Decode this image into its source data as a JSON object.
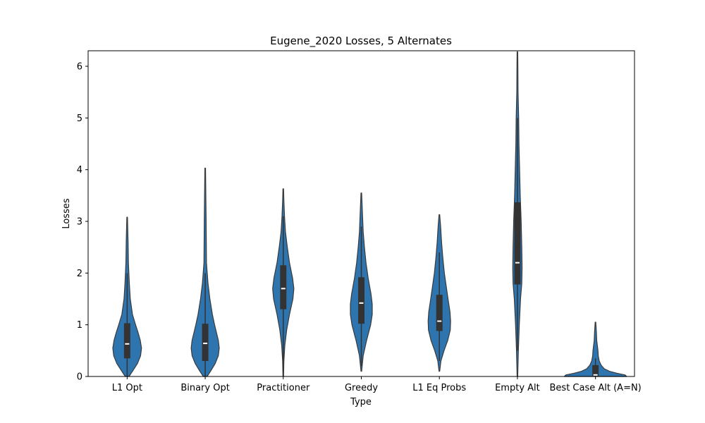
{
  "chart_data": {
    "type": "violin",
    "title": "Eugene_2020 Losses, 5 Alternates",
    "xlabel": "Type",
    "ylabel": "Losses",
    "ylim": [
      0,
      6.3
    ],
    "yticks": [
      0,
      1,
      2,
      3,
      4,
      5,
      6
    ],
    "grid": false,
    "legend": "none",
    "violin_color": "#2e75b0",
    "box_color": "#333333",
    "median_color": "#ffffff",
    "categories": [
      "L1 Opt",
      "Binary Opt",
      "Practitioner",
      "Greedy",
      "L1 Eq Probs",
      "Empty Alt",
      "Best Case Alt (A=N)"
    ],
    "violins": [
      {
        "category": "L1 Opt",
        "min": 0,
        "q1": 0.35,
        "median": 0.63,
        "q3": 1.03,
        "max": 3.08,
        "whisker_low": 0,
        "whisker_high": 2.0,
        "profile": [
          [
            0,
            0.06
          ],
          [
            0.1,
            0.17
          ],
          [
            0.25,
            0.33
          ],
          [
            0.4,
            0.43
          ],
          [
            0.55,
            0.46
          ],
          [
            0.7,
            0.42
          ],
          [
            0.85,
            0.35
          ],
          [
            1.0,
            0.27
          ],
          [
            1.2,
            0.17
          ],
          [
            1.5,
            0.1
          ],
          [
            1.8,
            0.07
          ],
          [
            2.2,
            0.04
          ],
          [
            2.6,
            0.03
          ],
          [
            3.08,
            0.01
          ]
        ]
      },
      {
        "category": "Binary Opt",
        "min": 0,
        "q1": 0.3,
        "median": 0.64,
        "q3": 1.02,
        "max": 4.03,
        "whisker_low": 0,
        "whisker_high": 2.0,
        "profile": [
          [
            0,
            0.06
          ],
          [
            0.1,
            0.17
          ],
          [
            0.25,
            0.32
          ],
          [
            0.4,
            0.42
          ],
          [
            0.55,
            0.45
          ],
          [
            0.7,
            0.42
          ],
          [
            0.85,
            0.36
          ],
          [
            1.0,
            0.3
          ],
          [
            1.2,
            0.23
          ],
          [
            1.5,
            0.15
          ],
          [
            1.8,
            0.09
          ],
          [
            2.2,
            0.04
          ],
          [
            3.0,
            0.03
          ],
          [
            4.03,
            0.01
          ]
        ]
      },
      {
        "category": "Practitioner",
        "min": 0,
        "q1": 1.3,
        "median": 1.7,
        "q3": 2.15,
        "max": 3.63,
        "whisker_low": 0.1,
        "whisker_high": 3.1,
        "profile": [
          [
            0,
            0.01
          ],
          [
            0.3,
            0.02
          ],
          [
            0.6,
            0.05
          ],
          [
            0.9,
            0.11
          ],
          [
            1.2,
            0.2
          ],
          [
            1.5,
            0.31
          ],
          [
            1.7,
            0.34
          ],
          [
            1.9,
            0.3
          ],
          [
            2.2,
            0.2
          ],
          [
            2.5,
            0.13
          ],
          [
            2.8,
            0.07
          ],
          [
            3.1,
            0.04
          ],
          [
            3.4,
            0.02
          ],
          [
            3.63,
            0.01
          ]
        ]
      },
      {
        "category": "Greedy",
        "min": 0.1,
        "q1": 1.02,
        "median": 1.42,
        "q3": 1.92,
        "max": 3.55,
        "whisker_low": 0.2,
        "whisker_high": 2.9,
        "profile": [
          [
            0.1,
            0.01
          ],
          [
            0.4,
            0.06
          ],
          [
            0.7,
            0.17
          ],
          [
            1.0,
            0.3
          ],
          [
            1.2,
            0.35
          ],
          [
            1.4,
            0.35
          ],
          [
            1.6,
            0.31
          ],
          [
            1.9,
            0.22
          ],
          [
            2.2,
            0.15
          ],
          [
            2.5,
            0.1
          ],
          [
            2.8,
            0.06
          ],
          [
            3.1,
            0.04
          ],
          [
            3.4,
            0.02
          ],
          [
            3.55,
            0.01
          ]
        ]
      },
      {
        "category": "L1 Eq Probs",
        "min": 0.1,
        "q1": 0.88,
        "median": 1.07,
        "q3": 1.58,
        "max": 3.13,
        "whisker_low": 0.3,
        "whisker_high": 2.4,
        "profile": [
          [
            0.1,
            0.01
          ],
          [
            0.3,
            0.05
          ],
          [
            0.5,
            0.15
          ],
          [
            0.7,
            0.27
          ],
          [
            0.9,
            0.35
          ],
          [
            1.07,
            0.36
          ],
          [
            1.25,
            0.34
          ],
          [
            1.45,
            0.29
          ],
          [
            1.7,
            0.23
          ],
          [
            2.0,
            0.16
          ],
          [
            2.3,
            0.11
          ],
          [
            2.6,
            0.07
          ],
          [
            2.9,
            0.04
          ],
          [
            3.13,
            0.01
          ]
        ]
      },
      {
        "category": "Empty Alt",
        "min": 0,
        "q1": 1.78,
        "median": 2.2,
        "q3": 3.37,
        "max": 6.28,
        "whisker_low": 0.5,
        "whisker_high": 5.0,
        "profile": [
          [
            0,
            0.01
          ],
          [
            0.5,
            0.03
          ],
          [
            1.0,
            0.06
          ],
          [
            1.5,
            0.1
          ],
          [
            1.8,
            0.14
          ],
          [
            2.1,
            0.15
          ],
          [
            2.5,
            0.14
          ],
          [
            3.0,
            0.12
          ],
          [
            3.5,
            0.09
          ],
          [
            4.0,
            0.07
          ],
          [
            4.5,
            0.05
          ],
          [
            5.0,
            0.04
          ],
          [
            5.5,
            0.02
          ],
          [
            6.0,
            0.015
          ],
          [
            6.28,
            0.01
          ]
        ]
      },
      {
        "category": "Best Case Alt (A=N)",
        "min": 0,
        "q1": 0.01,
        "median": 0.03,
        "q3": 0.22,
        "max": 1.05,
        "whisker_low": 0,
        "whisker_high": 0.35,
        "profile": [
          [
            0,
            1.0
          ],
          [
            0.03,
            0.95
          ],
          [
            0.06,
            0.7
          ],
          [
            0.1,
            0.45
          ],
          [
            0.15,
            0.28
          ],
          [
            0.22,
            0.18
          ],
          [
            0.3,
            0.12
          ],
          [
            0.4,
            0.09
          ],
          [
            0.5,
            0.08
          ],
          [
            0.6,
            0.06
          ],
          [
            0.7,
            0.04
          ],
          [
            0.85,
            0.03
          ],
          [
            1.05,
            0.01
          ]
        ]
      }
    ]
  }
}
